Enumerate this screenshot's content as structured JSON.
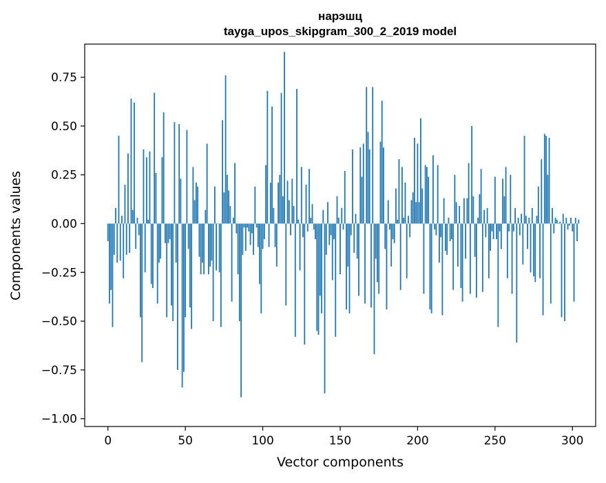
{
  "chart_data": {
    "type": "bar",
    "title": "нарэшц",
    "subtitle": "tayga_upos_skipgram_300_2_2019 model",
    "xlabel": "Vector components",
    "ylabel": "Components values",
    "xlim": [
      -15,
      315
    ],
    "ylim": [
      -1.04,
      0.92
    ],
    "xticks": [
      0,
      50,
      100,
      150,
      200,
      250,
      300
    ],
    "xtick_labels": [
      "0",
      "50",
      "100",
      "150",
      "200",
      "250",
      "300"
    ],
    "yticks": [
      -1.0,
      -0.75,
      -0.5,
      -0.25,
      0.0,
      0.25,
      0.5,
      0.75
    ],
    "ytick_labels": [
      "−1.00",
      "−0.75",
      "−0.50",
      "−0.25",
      "0.00",
      "0.25",
      "0.50",
      "0.75"
    ],
    "bar_color": "#1f77b4",
    "grid": false,
    "legend": "none",
    "series": [
      {
        "values": [
          -0.09,
          -0.41,
          -0.34,
          -0.53,
          -0.16,
          0.08,
          -0.2,
          0.45,
          -0.19,
          0.04,
          -0.28,
          0.2,
          -0.16,
          0.36,
          -0.15,
          0.64,
          0.07,
          0.62,
          -0.13,
          0.03,
          -0.06,
          -0.48,
          -0.71,
          0.38,
          -0.25,
          0.34,
          0.02,
          0.37,
          -0.31,
          -0.33,
          0.67,
          0.26,
          -0.41,
          -0.2,
          -0.18,
          0.34,
          0.57,
          -0.1,
          -0.48,
          -0.1,
          -0.08,
          -0.42,
          -0.5,
          0.52,
          -0.2,
          -0.75,
          0.51,
          0.23,
          -0.84,
          -0.76,
          -0.48,
          0.48,
          -0.13,
          -0.43,
          -0.54,
          0.29,
          0.12,
          0.21,
          0.19,
          -0.17,
          -0.26,
          -0.2,
          -0.26,
          0.07,
          0.41,
          -0.26,
          -0.22,
          -0.19,
          -0.5,
          0.19,
          -0.24,
          0.0,
          -0.25,
          -0.53,
          0.53,
          0.16,
          0.76,
          0.25,
          0.17,
          0.09,
          -0.4,
          0.03,
          0.31,
          -0.05,
          -0.26,
          -0.5,
          -0.89,
          -0.16,
          -0.02,
          -0.14,
          -0.02,
          -0.04,
          -0.11,
          -0.05,
          -0.16,
          0.19,
          -0.02,
          -0.12,
          -0.31,
          -0.46,
          -0.13,
          -0.08,
          0.3,
          0.68,
          -0.12,
          0.21,
          0.6,
          0.08,
          -0.12,
          -0.22,
          0.21,
          0.25,
          0.67,
          0.14,
          0.88,
          -0.42,
          0.22,
          0.12,
          -0.06,
          0.23,
          0.09,
          -0.58,
          0.69,
          0.02,
          -0.24,
          0.29,
          -0.07,
          -0.62,
          0.2,
          -0.04,
          0.28,
          0.03,
          0.1,
          -0.03,
          -0.08,
          -0.55,
          -0.57,
          -0.37,
          -0.46,
          0.07,
          -0.87,
          -0.16,
          0.11,
          -0.11,
          -0.06,
          -0.29,
          -0.08,
          -0.58,
          0.14,
          0.03,
          -0.26,
          0.08,
          -0.03,
          0.27,
          -0.44,
          -0.22,
          -0.46,
          -0.06,
          0.38,
          -0.15,
          0.05,
          -0.18,
          -0.37,
          0.39,
          0.24,
          0.41,
          -0.41,
          0.7,
          0.47,
          0.38,
          -0.43,
          0.7,
          -0.67,
          -0.18,
          -0.3,
          -0.36,
          0.42,
          0.63,
          0.39,
          -0.13,
          -0.44,
          0.12,
          -0.03,
          -0.22,
          -0.08,
          -0.1,
          0.18,
          0.02,
          0.33,
          -0.34,
          0.29,
          0.03,
          0.21,
          -0.28,
          0.04,
          -0.07,
          0.12,
          0.16,
          0.44,
          0.11,
          0.41,
          0.11,
          0.54,
          0.18,
          -0.36,
          0.3,
          0.29,
          0.24,
          -0.44,
          -0.46,
          0.35,
          -0.03,
          -0.06,
          0.3,
          -0.2,
          -0.07,
          -0.47,
          0.13,
          -0.14,
          -0.16,
          0.03,
          -0.09,
          -0.08,
          -0.34,
          0.25,
          0.11,
          -0.22,
          0.09,
          -0.33,
          -0.4,
          0.13,
          -0.18,
          0.13,
          0.31,
          -0.36,
          0.5,
          0.14,
          -0.17,
          -0.38,
          0.03,
          0.15,
          0.28,
          -0.35,
          0.07,
          -0.07,
          0.08,
          -0.28,
          -0.14,
          -0.04,
          -0.08,
          0.24,
          -0.08,
          -0.53,
          -0.04,
          -0.13,
          0.23,
          0.14,
          0.29,
          -0.28,
          -0.04,
          0.25,
          -0.36,
          -0.04,
          0.08,
          -0.61,
          0.03,
          -0.06,
          0.05,
          -0.21,
          0.45,
          0.04,
          -0.13,
          0.03,
          -0.25,
          0.08,
          -0.27,
          -0.3,
          0.04,
          0.19,
          -0.28,
          0.33,
          -0.47,
          0.46,
          0.45,
          0.25,
          0.44,
          -0.41,
          0.08,
          -0.05,
          0.03,
          0.02,
          0.0,
          0.01,
          -0.48,
          0.05,
          -0.5,
          0.03,
          -0.03,
          -0.01,
          0.03,
          -0.04,
          -0.4,
          0.03,
          -0.09,
          0.02
        ]
      }
    ]
  }
}
